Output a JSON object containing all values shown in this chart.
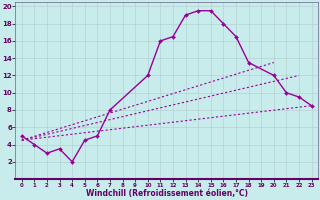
{
  "xlabel": "Windchill (Refroidissement éolien,°C)",
  "bg_color": "#c8ecec",
  "line_color": "#990099",
  "grid_color": "#b0cccc",
  "xlim": [
    -0.5,
    23.5
  ],
  "ylim": [
    0,
    20.5
  ],
  "xticks": [
    0,
    1,
    2,
    3,
    4,
    5,
    6,
    7,
    8,
    9,
    10,
    11,
    12,
    13,
    14,
    15,
    16,
    17,
    18,
    19,
    20,
    21,
    22,
    23
  ],
  "yticks": [
    2,
    4,
    6,
    8,
    10,
    12,
    14,
    16,
    18,
    20
  ],
  "curve_x": [
    0,
    1,
    2,
    3,
    4,
    5,
    6,
    7,
    10,
    11,
    12,
    13,
    14,
    15,
    16,
    17,
    18,
    20,
    21,
    22,
    23
  ],
  "curve_y": [
    5,
    4,
    3,
    3.5,
    2,
    4.5,
    5,
    8,
    12,
    16,
    16.5,
    19,
    19.5,
    19.5,
    18,
    16.5,
    13.5,
    12,
    10,
    9.5,
    8.5
  ],
  "line2_x": [
    0,
    20
  ],
  "line2_y": [
    4.5,
    13.5
  ],
  "line3_x": [
    0,
    22
  ],
  "line3_y": [
    4.5,
    12.0
  ],
  "line4_x": [
    0,
    23
  ],
  "line4_y": [
    4.5,
    8.5
  ]
}
